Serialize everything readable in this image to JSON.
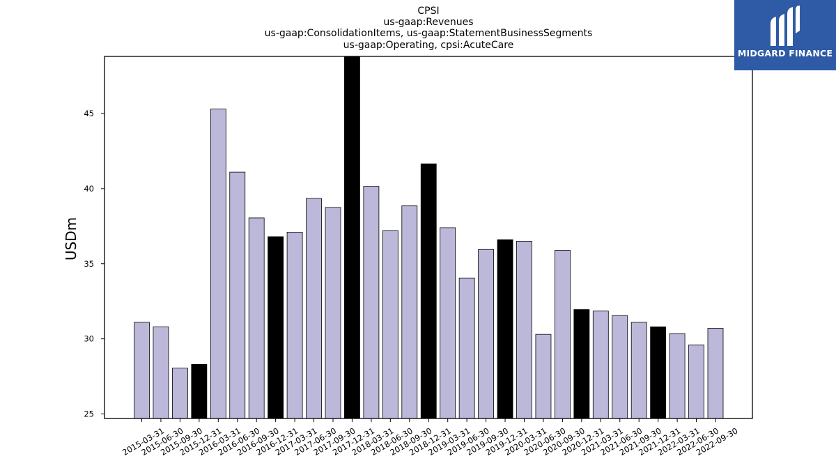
{
  "colors": {
    "bar_default": "#bcb8da",
    "bar_q4": "#000000",
    "logo_bg": "#2e5aa6"
  },
  "logo": {
    "text": "MIDGARD FINANCE"
  },
  "chart_data": {
    "type": "bar",
    "title": [
      "CPSI",
      "us-gaap:Revenues",
      "us-gaap:ConsolidationItems, us-gaap:StatementBusinessSegments",
      "us-gaap:Operating, cpsi:AcuteCare"
    ],
    "xlabel": "",
    "ylabel": "USDm",
    "ylim": [
      24.7,
      48.8
    ],
    "yticks": [
      25,
      30,
      35,
      40,
      45
    ],
    "grid": false,
    "categories": [
      "2015-03-31",
      "2015-06-30",
      "2015-09-30",
      "2015-12-31",
      "2016-03-31",
      "2016-06-30",
      "2016-09-30",
      "2016-12-31",
      "2017-03-31",
      "2017-06-30",
      "2017-09-30",
      "2017-12-31",
      "2018-03-31",
      "2018-06-30",
      "2018-09-30",
      "2018-12-31",
      "2019-03-31",
      "2019-06-30",
      "2019-09-30",
      "2019-12-31",
      "2020-03-31",
      "2020-06-30",
      "2020-09-30",
      "2020-12-31",
      "2021-03-31",
      "2021-06-30",
      "2021-09-30",
      "2021-12-31",
      "2022-03-31",
      "2022-06-30",
      "2022-09-30"
    ],
    "values": [
      31.1,
      30.8,
      28.05,
      28.3,
      45.3,
      41.1,
      38.05,
      36.8,
      37.1,
      39.35,
      38.75,
      49.5,
      40.15,
      37.2,
      38.85,
      41.65,
      37.4,
      34.05,
      35.95,
      36.6,
      36.5,
      30.3,
      35.9,
      31.95,
      31.85,
      31.55,
      31.1,
      30.8,
      30.35,
      29.6,
      30.7
    ],
    "highlight": [
      false,
      false,
      false,
      true,
      false,
      false,
      false,
      true,
      false,
      false,
      false,
      true,
      false,
      false,
      false,
      true,
      false,
      false,
      false,
      true,
      false,
      false,
      false,
      true,
      false,
      false,
      false,
      true,
      false,
      false,
      false
    ]
  }
}
